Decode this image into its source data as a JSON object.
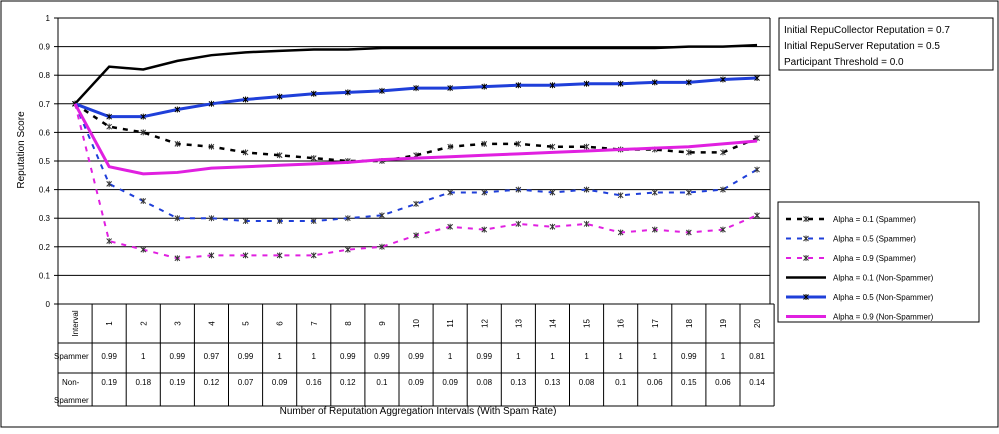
{
  "chart_data": {
    "type": "line",
    "ylabel": "Reputation Score",
    "xlabel": "Number of Reputation Aggregation Intervals (With Spam Rate)",
    "ylim": [
      0,
      1
    ],
    "yticks": [
      "0",
      "0.1",
      "0.2",
      "0.3",
      "0.4",
      "0.5",
      "0.6",
      "0.7",
      "0.8",
      "0.9",
      "1"
    ],
    "grid": "horizontal",
    "legend_position": "right",
    "x_header": "Interval",
    "x": [
      0,
      1,
      2,
      3,
      4,
      5,
      6,
      7,
      8,
      9,
      10,
      11,
      12,
      13,
      14,
      15,
      16,
      17,
      18,
      19,
      20
    ],
    "categories": [
      "1",
      "2",
      "3",
      "4",
      "5",
      "6",
      "7",
      "8",
      "9",
      "10",
      "11",
      "12",
      "13",
      "14",
      "15",
      "16",
      "17",
      "18",
      "19",
      "20"
    ],
    "annotations": [
      "Initial RepuCollector Reputation = 0.7",
      "Initial RepuServer Reputation = 0.5",
      "Participant Threshold = 0.0"
    ],
    "rate_table": [
      {
        "label": "Spammer",
        "values": [
          "0.99",
          "1",
          "0.99",
          "0.97",
          "0.99",
          "1",
          "1",
          "0.99",
          "0.99",
          "0.99",
          "1",
          "0.99",
          "1",
          "1",
          "1",
          "1",
          "1",
          "0.99",
          "1",
          "0.81"
        ]
      },
      {
        "label": "Non-Spammer",
        "values": [
          "0.19",
          "0.18",
          "0.19",
          "0.12",
          "0.07",
          "0.09",
          "0.16",
          "0.12",
          "0.1",
          "0.09",
          "0.09",
          "0.08",
          "0.13",
          "0.13",
          "0.08",
          "0.1",
          "0.06",
          "0.15",
          "0.06",
          "0.14"
        ]
      }
    ],
    "series": [
      {
        "name": "Alpha = 0.1 (Spammer)",
        "color": "#000000",
        "style": "dashed",
        "width": 2.5,
        "values": [
          0.7,
          0.62,
          0.6,
          0.56,
          0.55,
          0.53,
          0.52,
          0.51,
          0.5,
          0.5,
          0.52,
          0.55,
          0.56,
          0.56,
          0.55,
          0.55,
          0.54,
          0.54,
          0.53,
          0.53,
          0.58
        ]
      },
      {
        "name": "Alpha = 0.5 (Spammer)",
        "color": "#1f3fd9",
        "style": "dashed",
        "width": 2,
        "values": [
          0.7,
          0.42,
          0.36,
          0.3,
          0.3,
          0.29,
          0.29,
          0.29,
          0.3,
          0.31,
          0.35,
          0.39,
          0.39,
          0.4,
          0.39,
          0.4,
          0.38,
          0.39,
          0.39,
          0.4,
          0.47
        ]
      },
      {
        "name": "Alpha = 0.9 (Spammer)",
        "color": "#e020e0",
        "style": "dashed",
        "width": 2,
        "values": [
          0.7,
          0.22,
          0.19,
          0.16,
          0.17,
          0.17,
          0.17,
          0.17,
          0.19,
          0.2,
          0.24,
          0.27,
          0.26,
          0.28,
          0.27,
          0.28,
          0.25,
          0.26,
          0.25,
          0.26,
          0.31
        ]
      },
      {
        "name": "Alpha = 0.1 (Non-Spammer)",
        "color": "#000000",
        "style": "solid",
        "width": 2.5,
        "values": [
          0.7,
          0.83,
          0.82,
          0.85,
          0.87,
          0.88,
          0.885,
          0.89,
          0.89,
          0.895,
          0.895,
          0.895,
          0.895,
          0.895,
          0.895,
          0.895,
          0.895,
          0.895,
          0.9,
          0.9,
          0.905
        ]
      },
      {
        "name": "Alpha = 0.5 (Non-Spammer)",
        "color": "#1f3fd9",
        "style": "solid",
        "width": 3,
        "values": [
          0.7,
          0.655,
          0.655,
          0.68,
          0.7,
          0.715,
          0.725,
          0.735,
          0.74,
          0.745,
          0.755,
          0.755,
          0.76,
          0.765,
          0.765,
          0.77,
          0.77,
          0.775,
          0.775,
          0.785,
          0.79
        ]
      },
      {
        "name": "Alpha = 0.9 (Non-Spammer)",
        "color": "#e020e0",
        "style": "solid",
        "width": 3,
        "values": [
          0.7,
          0.48,
          0.455,
          0.46,
          0.475,
          0.48,
          0.485,
          0.49,
          0.495,
          0.505,
          0.51,
          0.515,
          0.52,
          0.525,
          0.53,
          0.535,
          0.54,
          0.545,
          0.55,
          0.56,
          0.57
        ]
      }
    ]
  }
}
